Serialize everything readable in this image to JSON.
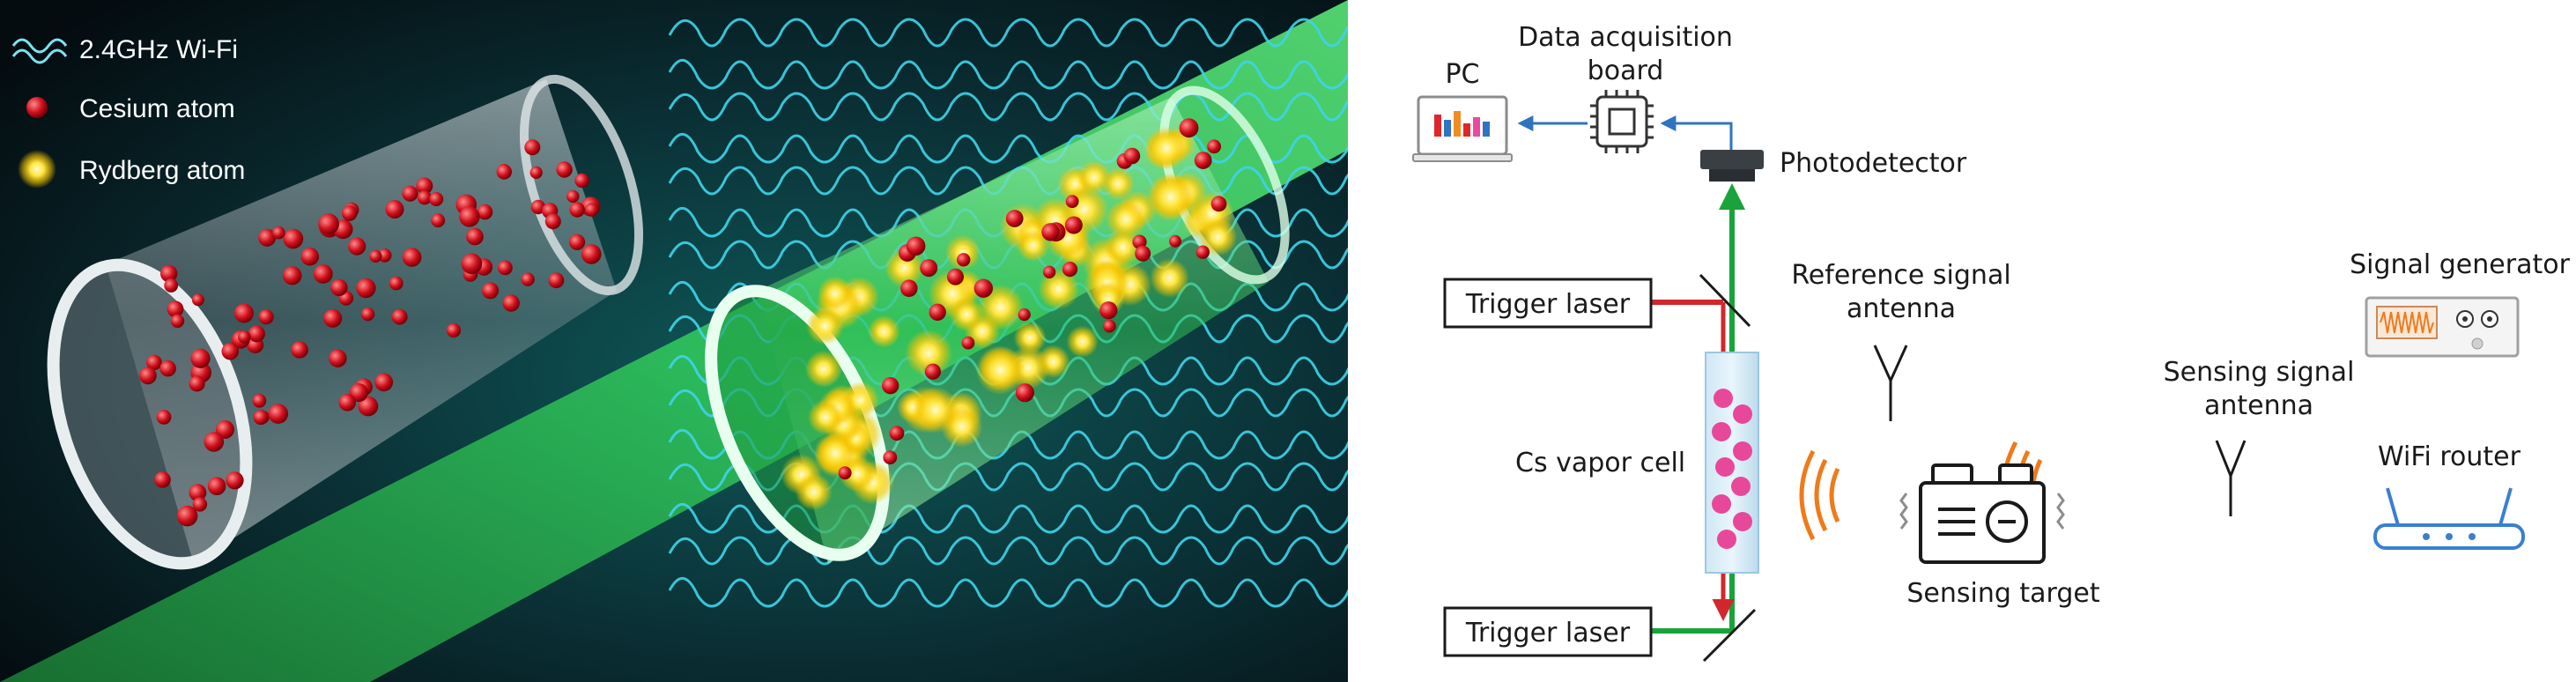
{
  "illustration": {
    "legend": [
      {
        "text": "2.4GHz Wi-Fi",
        "icon": "wave-icon"
      },
      {
        "text": "Cesium atom",
        "icon": "red-dot-icon"
      },
      {
        "text": "Rydberg atom",
        "icon": "yellow-glow-icon"
      }
    ]
  },
  "diagram": {
    "pc": "PC",
    "daq_line1": "Data acquisition",
    "daq_line2": "board",
    "photodetector": "Photodetector",
    "trigger_top": "Trigger laser",
    "trigger_bottom": "Trigger laser",
    "ref_line1": "Reference signal",
    "ref_line2": "antenna",
    "vapor_cell": "Cs vapor cell",
    "sensing_target": "Sensing target",
    "sense_line1": "Sensing signal",
    "sense_line2": "antenna",
    "signal_generator": "Signal generator",
    "wifi_router": "WiFi router"
  },
  "colors": {
    "green_beam": "#1aa33a",
    "red_beam": "#d0282c",
    "arrow_blue": "#2f74c0",
    "wave_orange": "#f07a1a",
    "router_blue": "#3a7fd0",
    "cell_pink": "#e8489a",
    "wifi_cyan": "#3fd4ea"
  }
}
